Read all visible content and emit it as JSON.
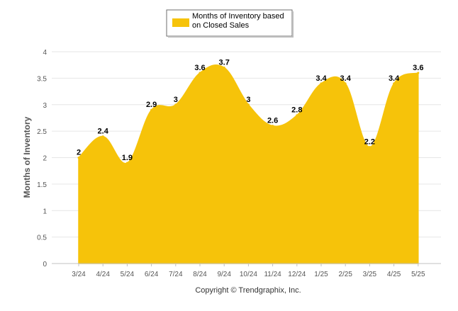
{
  "colors": {
    "area": "#F6C30A",
    "grid": "#E6E6E6",
    "axis": "#C0C0C0",
    "text": "#555555",
    "label": "#000000",
    "legend_border": "#6E6E6E"
  },
  "chart_data": {
    "type": "area",
    "title": "",
    "xlabel": "",
    "ylabel": "Months of Inventory",
    "ylim": [
      0,
      4
    ],
    "yticks": [
      "0",
      "0.5",
      "1",
      "1.5",
      "2",
      "2.5",
      "3",
      "3.5",
      "4"
    ],
    "grid": true,
    "legend_position": "top-center",
    "categories": [
      "3/24",
      "4/24",
      "5/24",
      "6/24",
      "7/24",
      "8/24",
      "9/24",
      "10/24",
      "11/24",
      "12/24",
      "1/25",
      "2/25",
      "3/25",
      "4/25",
      "5/25"
    ],
    "series": [
      {
        "name": "Months of Inventory based on Closed Sales",
        "values": [
          2,
          2.4,
          1.9,
          2.9,
          3,
          3.6,
          3.7,
          3,
          2.6,
          2.8,
          3.4,
          3.4,
          2.2,
          3.4,
          3.6
        ],
        "labels": [
          "2",
          "2.4",
          "1.9",
          "2.9",
          "3",
          "3.6",
          "3.7",
          "3",
          "2.6",
          "2.8",
          "3.4",
          "3.4",
          "2.2",
          "3.4",
          "3.6"
        ]
      }
    ],
    "legend_lines": [
      "Months of Inventory based",
      "on Closed Sales"
    ],
    "footer": "Copyright © Trendgraphix, Inc."
  }
}
